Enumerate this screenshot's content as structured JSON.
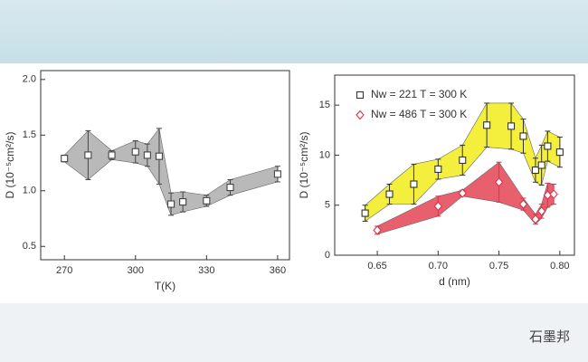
{
  "chart_data": [
    {
      "type": "band",
      "ylabel": "D (10⁻⁵cm²/s)",
      "xlabel": "T(K)",
      "x": [
        270,
        280,
        290,
        300,
        305,
        310,
        315,
        320,
        330,
        340,
        360
      ],
      "xlim": [
        260,
        365
      ],
      "xticks": [
        270,
        300,
        330,
        360
      ],
      "ylim": [
        0.38,
        2.08
      ],
      "yticks": [
        0.5,
        {
          "value": 1,
          "label": "1.0"
        },
        1.5,
        {
          "value": 2,
          "label": "2.0"
        }
      ],
      "series": [
        {
          "color": "#444444",
          "band_color": "#b9b9b9",
          "marker": "square",
          "values": [
            1.29,
            1.32,
            1.32,
            1.35,
            1.32,
            1.31,
            0.88,
            0.9,
            0.91,
            1.03,
            1.15
          ],
          "errors": [
            0.03,
            0.22,
            0.04,
            0.1,
            0.1,
            0.25,
            0.1,
            0.09,
            0.05,
            0.07,
            0.07
          ]
        }
      ]
    },
    {
      "type": "band",
      "ylabel": "D (10⁻⁵cm²/s)",
      "xlabel": "d (nm)",
      "x": [
        0.64,
        0.66,
        0.68,
        0.7,
        0.72,
        0.74,
        0.76,
        0.77,
        0.78,
        0.785,
        0.79,
        0.8
      ],
      "xlim": [
        0.615,
        0.812
      ],
      "xticks": [
        0.65,
        {
          "value": 0.7,
          "label": "0.70"
        },
        0.75,
        {
          "value": 0.8,
          "label": "0.80"
        }
      ],
      "ylim": [
        0,
        18
      ],
      "yticks": [
        0,
        5,
        10,
        15
      ],
      "series": [
        {
          "name": "Nw = 221 T = 300 K",
          "color": "#333333",
          "band_color": "#f4ee3c",
          "marker": "square",
          "values": [
            4.2,
            6.1,
            7.1,
            8.6,
            9.5,
            13.0,
            12.9,
            11.9,
            8.5,
            9.0,
            10.9,
            10.3
          ],
          "errors": [
            0.8,
            1.0,
            2.0,
            1.0,
            1.5,
            2.2,
            2.3,
            1.7,
            1.2,
            2.0,
            1.5,
            1.5
          ]
        },
        {
          "name": "Nw = 486 T = 300 K",
          "color": "#d9344a",
          "band_color": "#e8606e",
          "marker": "diamond",
          "x": [
            0.65,
            0.7,
            0.72,
            0.75,
            0.77,
            0.78,
            0.785,
            0.79,
            0.795
          ],
          "values": [
            2.5,
            4.9,
            6.2,
            7.3,
            5.1,
            3.6,
            4.4,
            6.0,
            6.1
          ],
          "errors": [
            0.4,
            1.0,
            0.3,
            2.0,
            0.6,
            0.5,
            0.7,
            1.2,
            1.0
          ]
        }
      ]
    }
  ],
  "watermark": "石墨邦"
}
